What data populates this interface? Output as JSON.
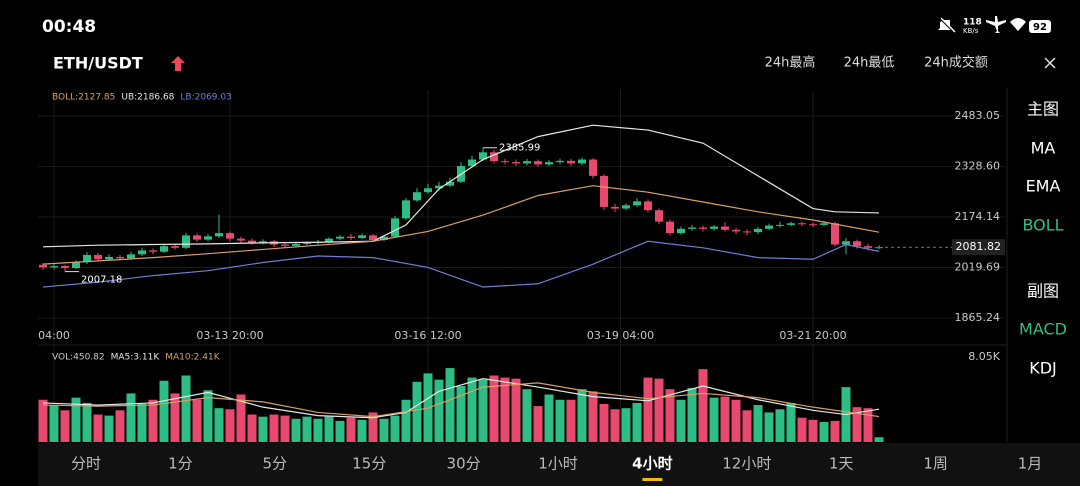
{
  "status": {
    "time": "00:48",
    "speed": "118",
    "speed_unit": "KB/s",
    "battery": "92"
  },
  "header": {
    "pair": "ETH/USDT",
    "stats": [
      "24h最高",
      "24h最低",
      "24h成交额"
    ]
  },
  "side": {
    "main_title": "主图",
    "main": [
      "MA",
      "EMA",
      "BOLL"
    ],
    "main_active": 2,
    "sub_title": "副图",
    "sub": [
      "MACD",
      "KDJ"
    ],
    "sub_active": 0
  },
  "tabs": {
    "items": [
      "分时",
      "1分",
      "5分",
      "15分",
      "30分",
      "1小时",
      "4小时",
      "12小时",
      "1天",
      "1周",
      "1月"
    ],
    "active": 6
  },
  "chart_data": [
    {
      "type": "candlestick",
      "up_color": "#2ebd85",
      "down_color": "#e84a6f",
      "legend": [
        {
          "text": "BOLL:2127.85",
          "color": "#d9a066"
        },
        {
          "text": "UB:2186.68",
          "color": "#e6e6e6"
        },
        {
          "text": "LB:2069.03",
          "color": "#6f7fd6"
        }
      ],
      "open": [
        2028,
        2020,
        2024,
        2018,
        2036,
        2058,
        2045,
        2052,
        2048,
        2060,
        2072,
        2068,
        2085,
        2080,
        2118,
        2105,
        2115,
        2125,
        2108,
        2102,
        2096,
        2100,
        2090,
        2086,
        2092,
        2095,
        2098,
        2108,
        2114,
        2110,
        2118,
        2104,
        2114,
        2170,
        2225,
        2250,
        2262,
        2270,
        2282,
        2330,
        2350,
        2372,
        2345,
        2342,
        2338,
        2345,
        2335,
        2342,
        2346,
        2338,
        2350,
        2300,
        2205,
        2200,
        2210,
        2222,
        2195,
        2160,
        2125,
        2138,
        2142,
        2138,
        2145,
        2135,
        2130,
        2128,
        2138,
        2148,
        2150,
        2155,
        2152,
        2150,
        2155,
        2090,
        2100,
        2085,
        2080
      ],
      "high": [
        2033,
        2030,
        2028,
        2042,
        2066,
        2064,
        2060,
        2058,
        2068,
        2080,
        2078,
        2092,
        2090,
        2126,
        2124,
        2122,
        2182,
        2130,
        2114,
        2108,
        2106,
        2104,
        2096,
        2098,
        2100,
        2104,
        2112,
        2120,
        2122,
        2124,
        2122,
        2120,
        2178,
        2232,
        2262,
        2276,
        2282,
        2295,
        2342,
        2362,
        2385.99,
        2380,
        2352,
        2350,
        2352,
        2350,
        2348,
        2352,
        2352,
        2356,
        2354,
        2305,
        2215,
        2216,
        2232,
        2228,
        2200,
        2166,
        2145,
        2150,
        2148,
        2150,
        2158,
        2140,
        2136,
        2144,
        2154,
        2160,
        2160,
        2160,
        2158,
        2162,
        2160,
        2110,
        2105,
        2092,
        2088
      ],
      "low": [
        2012,
        2014,
        2007.18,
        2015,
        2030,
        2038,
        2040,
        2042,
        2044,
        2055,
        2060,
        2064,
        2074,
        2076,
        2098,
        2100,
        2110,
        2100,
        2096,
        2090,
        2090,
        2082,
        2080,
        2082,
        2088,
        2090,
        2094,
        2104,
        2104,
        2106,
        2098,
        2100,
        2110,
        2165,
        2220,
        2245,
        2255,
        2266,
        2278,
        2325,
        2345,
        2338,
        2335,
        2330,
        2332,
        2328,
        2330,
        2336,
        2330,
        2332,
        2292,
        2195,
        2190,
        2195,
        2205,
        2188,
        2152,
        2118,
        2120,
        2132,
        2130,
        2132,
        2130,
        2122,
        2118,
        2122,
        2134,
        2142,
        2146,
        2146,
        2144,
        2146,
        2084,
        2060,
        2078,
        2072,
        2076
      ],
      "close": [
        2020,
        2024,
        2018,
        2036,
        2058,
        2045,
        2052,
        2048,
        2060,
        2072,
        2068,
        2085,
        2080,
        2118,
        2105,
        2115,
        2125,
        2108,
        2102,
        2096,
        2100,
        2090,
        2086,
        2092,
        2095,
        2098,
        2108,
        2114,
        2110,
        2118,
        2104,
        2114,
        2170,
        2225,
        2250,
        2262,
        2270,
        2282,
        2330,
        2350,
        2372,
        2345,
        2342,
        2338,
        2345,
        2335,
        2342,
        2346,
        2338,
        2350,
        2300,
        2205,
        2200,
        2210,
        2222,
        2195,
        2160,
        2125,
        2138,
        2142,
        2138,
        2145,
        2135,
        2130,
        2128,
        2138,
        2148,
        2150,
        2155,
        2152,
        2150,
        2155,
        2090,
        2100,
        2085,
        2080,
        2081.82
      ],
      "series": [
        {
          "name": "UB",
          "color": "#e6e6e6",
          "x": [
            0,
            5,
            10,
            15,
            20,
            25,
            30,
            33,
            36,
            40,
            45,
            50,
            55,
            60,
            65,
            70,
            72,
            76
          ],
          "values": [
            2083,
            2088,
            2090,
            2092,
            2095,
            2097,
            2100,
            2150,
            2260,
            2350,
            2420,
            2455,
            2440,
            2400,
            2300,
            2200,
            2190,
            2186.68
          ]
        },
        {
          "name": "BOLL",
          "color": "#d9a066",
          "x": [
            0,
            5,
            10,
            15,
            20,
            25,
            30,
            35,
            40,
            45,
            50,
            55,
            60,
            65,
            70,
            76
          ],
          "values": [
            2030,
            2040,
            2050,
            2062,
            2075,
            2088,
            2100,
            2130,
            2180,
            2240,
            2270,
            2250,
            2220,
            2190,
            2165,
            2127.85
          ]
        },
        {
          "name": "LB",
          "color": "#6f7fd6",
          "x": [
            0,
            5,
            10,
            15,
            20,
            25,
            30,
            35,
            40,
            45,
            50,
            55,
            60,
            65,
            70,
            73,
            76
          ],
          "values": [
            1960,
            1975,
            1995,
            2010,
            2035,
            2055,
            2050,
            2020,
            1960,
            1970,
            2030,
            2100,
            2080,
            2050,
            2045,
            2090,
            2069.03
          ]
        }
      ],
      "xticks": [
        {
          "value": 1,
          "label": "04:00"
        },
        {
          "value": 17,
          "label": "03-13 20:00"
        },
        {
          "value": 35,
          "label": "03-16 12:00"
        },
        {
          "value": 52.5,
          "label": "03-19 04:00"
        },
        {
          "value": 70,
          "label": "03-21 20:00"
        }
      ],
      "ylim": [
        1828.6,
        2562.6
      ],
      "yticks": [
        2483.05,
        {
          "value": 2328.6,
          "label": "2328.60"
        },
        2174.14,
        2019.69,
        1865.24
      ]
    },
    {
      "type": "bar",
      "legend": [
        {
          "text": "VOL:450.82",
          "color": "#c8c8c8"
        },
        {
          "text": "MA5:3.11K",
          "color": "#e6e6e6"
        },
        {
          "text": "MA10:2.41K",
          "color": "#d9a066"
        }
      ],
      "values": [
        4000,
        3500,
        3000,
        4200,
        3700,
        2600,
        2500,
        3000,
        4600,
        3600,
        4000,
        5800,
        4600,
        6300,
        4000,
        4900,
        3200,
        3100,
        4500,
        2600,
        2400,
        2600,
        2500,
        2200,
        2400,
        2200,
        2400,
        2000,
        2300,
        2100,
        2800,
        2200,
        2500,
        4000,
        5700,
        6500,
        5900,
        7000,
        5300,
        6100,
        5900,
        6300,
        6100,
        6000,
        5000,
        3400,
        4500,
        4000,
        4000,
        5000,
        4800,
        3600,
        3100,
        3200,
        3700,
        6100,
        6000,
        5000,
        4000,
        5100,
        6900,
        4200,
        4300,
        4000,
        3000,
        3500,
        2800,
        3100,
        3700,
        2300,
        2100,
        1900,
        2000,
        5200,
        3300,
        3200,
        450.82
      ],
      "series": [
        {
          "name": "MA5",
          "color": "#e6e6e6",
          "x": [
            0,
            5,
            10,
            15,
            20,
            25,
            30,
            33,
            36,
            40,
            45,
            50,
            55,
            60,
            65,
            70,
            73,
            76
          ],
          "values": [
            3700,
            3500,
            3700,
            4700,
            3300,
            2500,
            2300,
            2800,
            4800,
            6000,
            5200,
            4300,
            3900,
            5300,
            4000,
            3000,
            2600,
            3110
          ]
        },
        {
          "name": "MA10",
          "color": "#d9a066",
          "x": [
            0,
            5,
            10,
            15,
            20,
            25,
            30,
            35,
            40,
            45,
            50,
            55,
            60,
            65,
            70,
            76
          ],
          "values": [
            3500,
            3400,
            3500,
            4200,
            3800,
            2800,
            2400,
            3200,
            5200,
            5600,
            4700,
            4100,
            4600,
            4200,
            3300,
            2410
          ]
        }
      ],
      "ylim": [
        0,
        8050
      ],
      "yticks": [
        {
          "value": 8050,
          "label": "8.05K"
        }
      ]
    }
  ]
}
